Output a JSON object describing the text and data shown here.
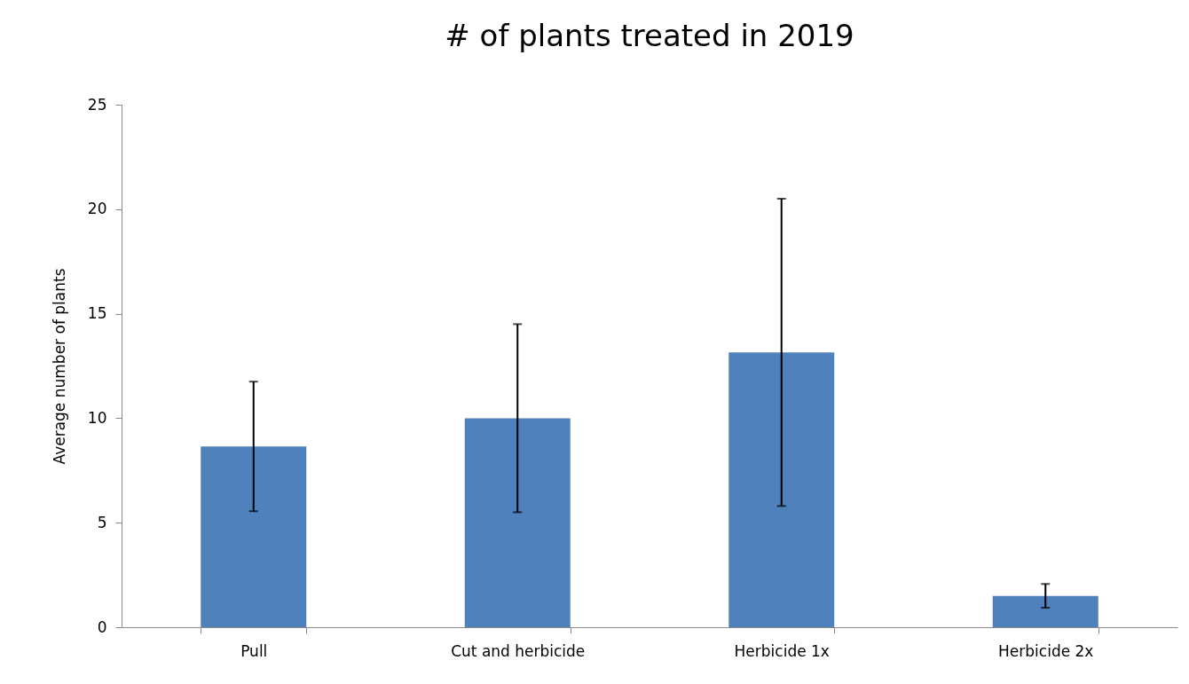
{
  "chart_data": {
    "type": "bar",
    "title": "# of plants treated in 2019",
    "ylabel": "Average number of plants",
    "categories": [
      "Pull",
      "Cut and herbicide",
      "Herbicide 1x",
      "Herbicide 2x"
    ],
    "values": [
      8.65,
      10.0,
      13.15,
      1.5
    ],
    "errors": [
      3.1,
      4.5,
      7.35,
      0.57
    ],
    "color": "#4f81bd",
    "ylim": [
      0,
      25
    ],
    "yticks": [
      0,
      5,
      10,
      15,
      20,
      25
    ],
    "grid": false
  }
}
